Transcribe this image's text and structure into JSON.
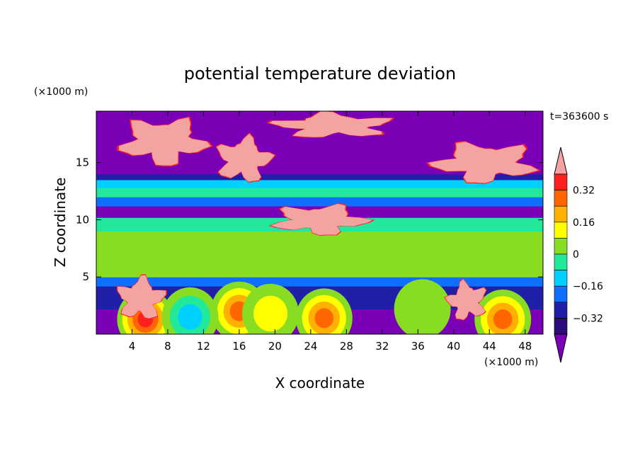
{
  "chart_data": {
    "type": "heatmap",
    "title": "potential temperature deviation",
    "time_label": "t=363600 s",
    "xlabel": "X coordinate",
    "ylabel": "Z coordinate",
    "x_unit": "(×1000 m)",
    "y_unit": "(×1000 m)",
    "xlim": [
      0,
      50
    ],
    "ylim": [
      0,
      19.5
    ],
    "x_ticks": [
      "4",
      "8",
      "12",
      "16",
      "20",
      "24",
      "28",
      "32",
      "36",
      "40",
      "44",
      "48"
    ],
    "y_ticks": [
      "5",
      "10",
      "15"
    ],
    "colorbar": {
      "levels": [
        -0.4,
        -0.32,
        -0.24,
        -0.16,
        -0.08,
        0,
        0.08,
        0.16,
        0.24,
        0.32,
        0.4
      ],
      "labels": [
        "0.32",
        "0.16",
        "0",
        "−0.16",
        "−0.32"
      ],
      "label_values": [
        0.32,
        0.16,
        0,
        -0.16,
        -0.32
      ],
      "colors": [
        "#2a0d7a",
        "#1f1fa8",
        "#0f70ff",
        "#00d0ff",
        "#22e89a",
        "#88dd22",
        "#ffff00",
        "#ffb000",
        "#ff6600",
        "#ff2020"
      ],
      "under_color": "#7a00b8",
      "over_color": "#f4a3a3",
      "extend": "both"
    },
    "bands": [
      {
        "z": [
          0,
          2.2
        ],
        "value": -0.44
      },
      {
        "z": [
          2.2,
          4.2
        ],
        "value": -0.3
      },
      {
        "z": [
          4.2,
          5.0
        ],
        "value": -0.18
      },
      {
        "z": [
          5.0,
          6.0
        ],
        "value": 0.02
      },
      {
        "z": [
          6.0,
          9.0
        ],
        "value": 0.06
      },
      {
        "z": [
          9.0,
          10.2
        ],
        "value": -0.06
      },
      {
        "z": [
          10.2,
          11.2
        ],
        "value": -0.44
      },
      {
        "z": [
          11.2,
          12.0
        ],
        "value": -0.2
      },
      {
        "z": [
          12.0,
          12.8
        ],
        "value": -0.04
      },
      {
        "z": [
          12.8,
          13.5
        ],
        "value": -0.13
      },
      {
        "z": [
          13.5,
          14.0
        ],
        "value": -0.3
      },
      {
        "z": [
          14.0,
          19.5
        ],
        "value": -0.44
      }
    ],
    "blobs": [
      {
        "x": 5.5,
        "z": 1.3,
        "value": 0.36
      },
      {
        "x": 16.0,
        "z": 2.0,
        "value": 0.3
      },
      {
        "x": 25.5,
        "z": 1.4,
        "value": 0.28
      },
      {
        "x": 45.5,
        "z": 1.3,
        "value": 0.3
      },
      {
        "x": 19.5,
        "z": 1.8,
        "value": 0.12
      },
      {
        "x": 36.5,
        "z": 2.2,
        "value": -0.06
      },
      {
        "x": 10.5,
        "z": 1.5,
        "value": -0.22
      }
    ],
    "positive_anomalies": [
      {
        "region": "upper left cloud",
        "x": [
          2,
          13
        ],
        "z": [
          14.5,
          19.2
        ],
        "value": 0.45
      },
      {
        "region": "upper middle cloud",
        "x": [
          13,
          20
        ],
        "z": [
          13.0,
          17.5
        ],
        "value": 0.45
      },
      {
        "region": "upper center cloud",
        "x": [
          19,
          34
        ],
        "z": [
          17.0,
          19.5
        ],
        "value": 0.45
      },
      {
        "region": "upper right cloud",
        "x": [
          37,
          50
        ],
        "z": [
          13.0,
          17.0
        ],
        "value": 0.45
      },
      {
        "region": "middle tongue",
        "x": [
          19,
          31
        ],
        "z": [
          8.5,
          11.5
        ],
        "value": 0.45
      },
      {
        "region": "lower left anomaly",
        "x": [
          2,
          8
        ],
        "z": [
          1.0,
          5.2
        ],
        "value": 0.45
      },
      {
        "region": "lower right anomaly",
        "x": [
          39,
          44
        ],
        "z": [
          1.0,
          4.8
        ],
        "value": 0.45
      }
    ]
  }
}
